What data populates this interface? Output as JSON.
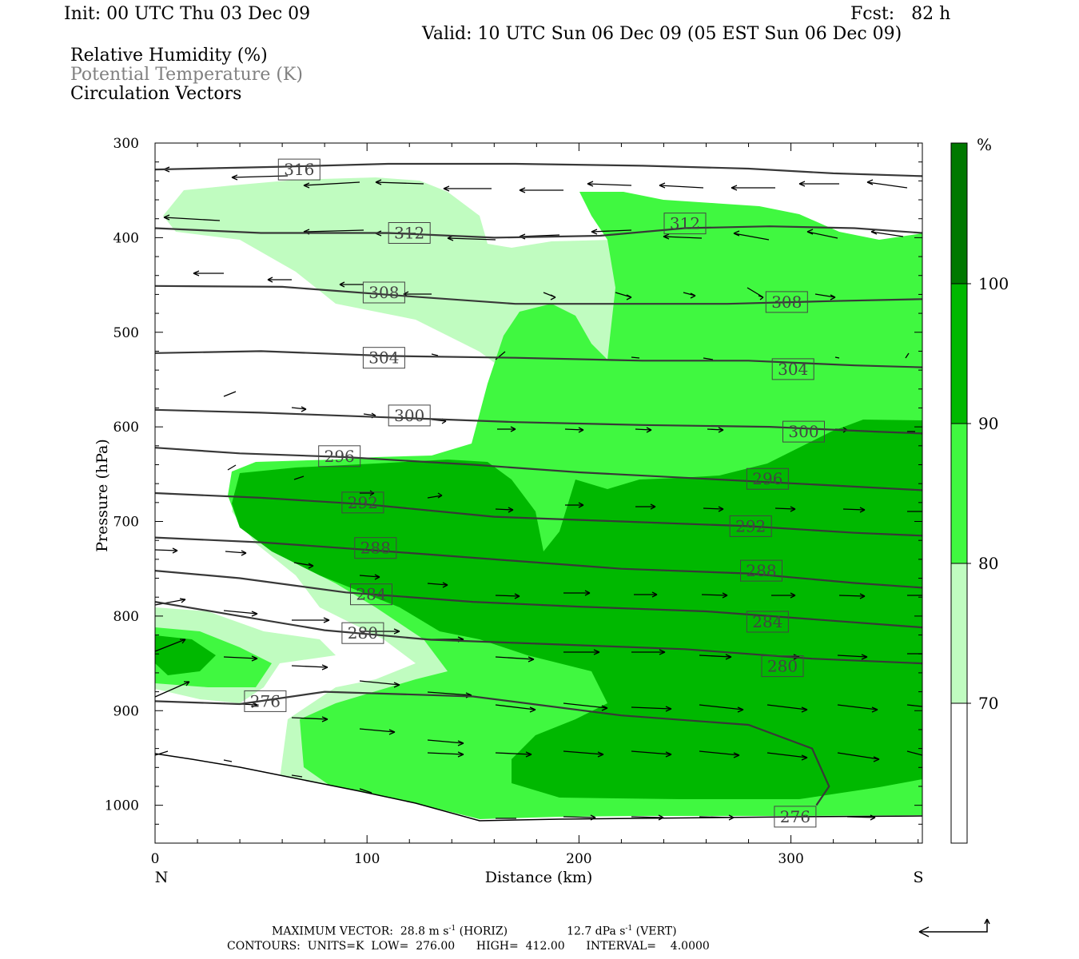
{
  "header": {
    "init": "Init: 00 UTC Thu 03 Dec 09",
    "fcst": "Fcst:   82 h",
    "valid": "Valid: 10 UTC Sun 06 Dec 09 (05 EST Sun 06 Dec 09)"
  },
  "legend_titles": [
    "Relative Humidity (%)",
    "Potential Temperature (K)",
    "Circulation Vectors"
  ],
  "footer": {
    "max_vector": "MAXIMUM VECTOR:  28.8 m s",
    "max_vector_horiz": " (HORIZ)",
    "max_vector_vert_value": "12.7 dPa s",
    "max_vector_vert": " (VERT)",
    "sup": "-1",
    "contours": "CONTOURS:  UNITS=K  LOW=  276.00      HIGH=  412.00      INTERVAL=    4.0000"
  },
  "colors": {
    "rh_70_80": "#c0fcc0",
    "rh_80_90": "#40f840",
    "rh_90_100": "#00b800",
    "rh_100": "#007800",
    "contour": "#383838",
    "contour_label_text": "#444444",
    "subtitle_gray": "#808080"
  },
  "chart_data": {
    "type": "cross-section",
    "xlabel": "Distance (km)",
    "ylabel": "Pressure (hPa)",
    "xlim": [
      0,
      362
    ],
    "ylim": [
      1040,
      300
    ],
    "xticks": [
      0,
      100,
      200,
      300
    ],
    "yticks": [
      300,
      400,
      500,
      600,
      700,
      800,
      900,
      1000
    ],
    "x_end_labels": {
      "left": "N",
      "right": "S"
    },
    "colorbar": {
      "unit": "%",
      "levels": [
        70,
        80,
        90,
        100
      ],
      "tick_labels": [
        "70",
        "80",
        "90",
        "100"
      ],
      "colors": [
        "#ffffff",
        "#c0fcc0",
        "#40f840",
        "#00b800",
        "#007800"
      ]
    },
    "theta_contours": [
      {
        "value": 316,
        "label": "316",
        "label_at": [
          68,
          328
        ],
        "points": [
          [
            0,
            328
          ],
          [
            60,
            325
          ],
          [
            110,
            322
          ],
          [
            170,
            322
          ],
          [
            230,
            324
          ],
          [
            280,
            327
          ],
          [
            320,
            332
          ],
          [
            362,
            335
          ]
        ]
      },
      {
        "value": 312,
        "label": "312",
        "label_at": [
          120,
          395
        ],
        "points": [
          [
            0,
            390
          ],
          [
            50,
            395
          ],
          [
            110,
            395
          ],
          [
            160,
            400
          ],
          [
            210,
            398
          ],
          [
            250,
            390
          ],
          [
            290,
            388
          ],
          [
            330,
            390
          ],
          [
            362,
            395
          ]
        ]
      },
      {
        "value": 312,
        "label": "312",
        "label_at": [
          250,
          385
        ],
        "points": []
      },
      {
        "value": 308,
        "label": "308",
        "label_at": [
          108,
          458
        ],
        "points": [
          [
            0,
            451
          ],
          [
            60,
            452
          ],
          [
            120,
            462
          ],
          [
            170,
            470
          ],
          [
            220,
            470
          ],
          [
            270,
            470
          ],
          [
            320,
            467
          ],
          [
            362,
            465
          ]
        ]
      },
      {
        "value": 308,
        "label": "308",
        "label_at": [
          298,
          468
        ],
        "points": []
      },
      {
        "value": 304,
        "label": "304",
        "label_at": [
          108,
          527
        ],
        "points": [
          [
            0,
            522
          ],
          [
            50,
            520
          ],
          [
            110,
            525
          ],
          [
            170,
            527
          ],
          [
            230,
            530
          ],
          [
            280,
            530
          ],
          [
            330,
            535
          ],
          [
            362,
            537
          ]
        ]
      },
      {
        "value": 304,
        "label": "304",
        "label_at": [
          301,
          539
        ],
        "points": []
      },
      {
        "value": 300,
        "label": "300",
        "label_at": [
          120,
          588
        ],
        "points": [
          [
            0,
            582
          ],
          [
            50,
            585
          ],
          [
            110,
            590
          ],
          [
            170,
            595
          ],
          [
            230,
            598
          ],
          [
            290,
            600
          ],
          [
            340,
            605
          ],
          [
            362,
            607
          ]
        ]
      },
      {
        "value": 300,
        "label": "300",
        "label_at": [
          306,
          605
        ],
        "points": []
      },
      {
        "value": 296,
        "label": "296",
        "label_at": [
          87,
          631
        ],
        "points": [
          [
            0,
            622
          ],
          [
            40,
            628
          ],
          [
            90,
            632
          ],
          [
            150,
            640
          ],
          [
            200,
            648
          ],
          [
            260,
            655
          ],
          [
            320,
            662
          ],
          [
            362,
            667
          ]
        ]
      },
      {
        "value": 296,
        "label": "296",
        "label_at": [
          289,
          655
        ],
        "points": []
      },
      {
        "value": 292,
        "label": "292",
        "label_at": [
          98,
          680
        ],
        "points": [
          [
            0,
            670
          ],
          [
            50,
            675
          ],
          [
            100,
            682
          ],
          [
            160,
            695
          ],
          [
            220,
            700
          ],
          [
            280,
            705
          ],
          [
            330,
            712
          ],
          [
            362,
            715
          ]
        ]
      },
      {
        "value": 292,
        "label": "292",
        "label_at": [
          281,
          705
        ],
        "points": []
      },
      {
        "value": 288,
        "label": "288",
        "label_at": [
          104,
          728
        ],
        "points": [
          [
            0,
            717
          ],
          [
            50,
            722
          ],
          [
            100,
            730
          ],
          [
            160,
            740
          ],
          [
            220,
            750
          ],
          [
            280,
            755
          ],
          [
            330,
            765
          ],
          [
            362,
            770
          ]
        ]
      },
      {
        "value": 288,
        "label": "288",
        "label_at": [
          286,
          752
        ],
        "points": []
      },
      {
        "value": 284,
        "label": "284",
        "label_at": [
          102,
          777
        ],
        "points": [
          [
            0,
            752
          ],
          [
            40,
            760
          ],
          [
            90,
            775
          ],
          [
            150,
            785
          ],
          [
            200,
            790
          ],
          [
            260,
            795
          ],
          [
            320,
            805
          ],
          [
            362,
            812
          ]
        ]
      },
      {
        "value": 284,
        "label": "284",
        "label_at": [
          289,
          806
        ],
        "points": []
      },
      {
        "value": 280,
        "label": "280",
        "label_at": [
          98,
          818
        ],
        "points": [
          [
            0,
            785
          ],
          [
            40,
            800
          ],
          [
            80,
            815
          ],
          [
            130,
            825
          ],
          [
            190,
            830
          ],
          [
            250,
            835
          ],
          [
            310,
            845
          ],
          [
            362,
            850
          ]
        ]
      },
      {
        "value": 280,
        "label": "280",
        "label_at": [
          296,
          853
        ],
        "points": []
      },
      {
        "value": 276,
        "label": "276",
        "label_at": [
          52,
          890
        ],
        "points": [
          [
            0,
            890
          ],
          [
            40,
            893
          ],
          [
            80,
            880
          ],
          [
            150,
            885
          ],
          [
            220,
            905
          ],
          [
            280,
            915
          ],
          [
            310,
            940
          ],
          [
            318,
            980
          ],
          [
            312,
            1000
          ]
        ]
      },
      {
        "value": 276,
        "label": "276",
        "label_at": [
          302,
          1012
        ],
        "points": []
      }
    ],
    "max_vector": {
      "horiz_m_s": 28.8,
      "vert_dPa_s": 12.7
    }
  }
}
